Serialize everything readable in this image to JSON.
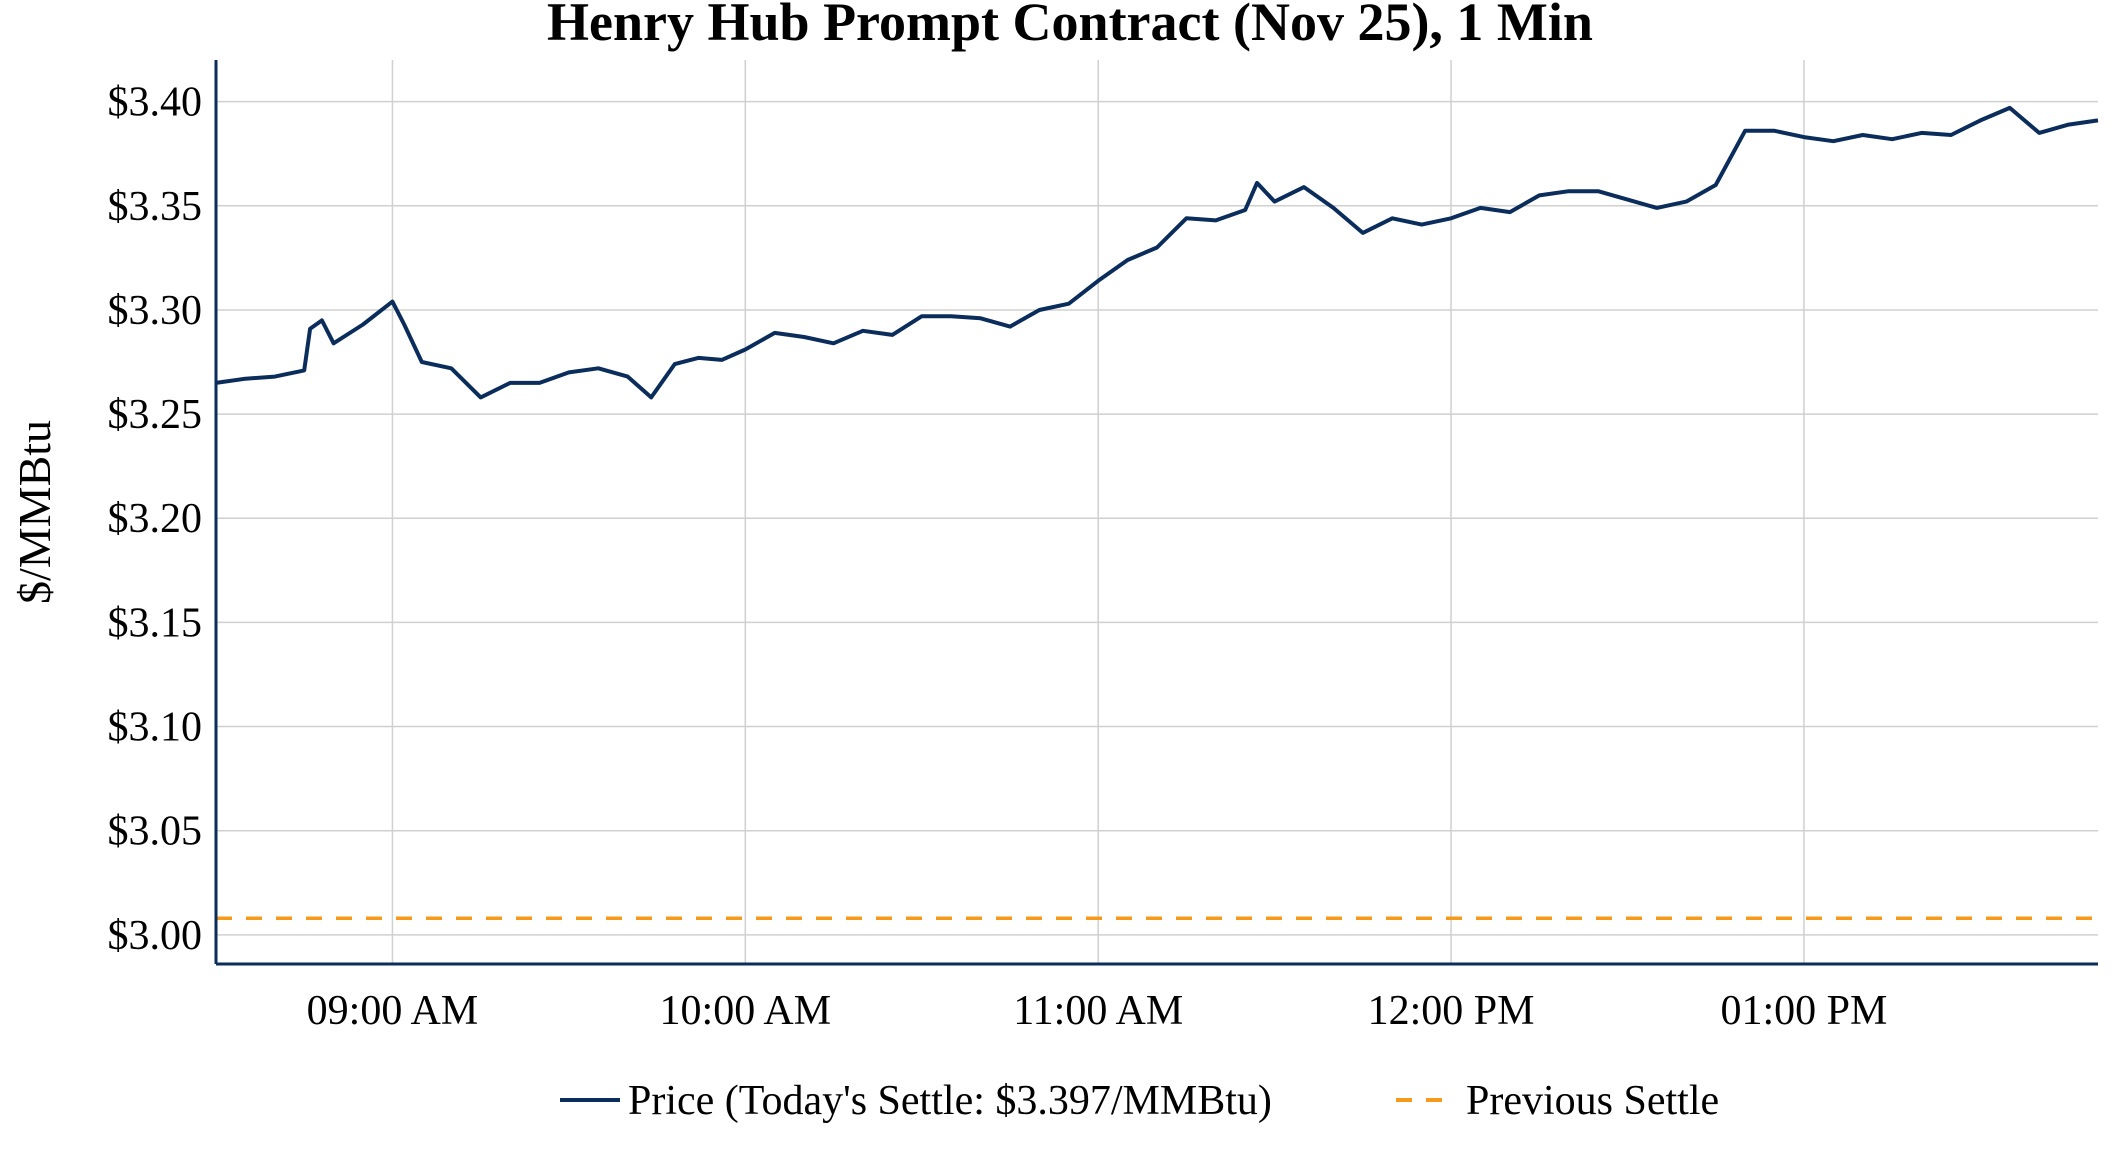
{
  "chart_data": {
    "type": "line",
    "title": "Henry Hub Prompt Contract (Nov 25), 1 Min",
    "ylabel": "$/MMBtu",
    "xlabel": "",
    "x_start": "08:30 AM",
    "x_end": "01:50 PM",
    "x_ticks": [
      "09:00 AM",
      "10:00 AM",
      "11:00 AM",
      "12:00 PM",
      "01:00 PM"
    ],
    "y_ticks": [
      "$3.00",
      "$3.05",
      "$3.10",
      "$3.15",
      "$3.20",
      "$3.25",
      "$3.30",
      "$3.35",
      "$3.40"
    ],
    "ylim": [
      2.986,
      3.42
    ],
    "grid": true,
    "legend_position": "bottom-center",
    "series": [
      {
        "name": "Price (Today's Settle: $3.397/MMBtu)",
        "color": "#0a2d5c",
        "style": "solid",
        "points": [
          [
            "08:30 AM",
            3.265
          ],
          [
            "08:35 AM",
            3.267
          ],
          [
            "08:40 AM",
            3.268
          ],
          [
            "08:45 AM",
            3.271
          ],
          [
            "08:46 AM",
            3.291
          ],
          [
            "08:48 AM",
            3.295
          ],
          [
            "08:50 AM",
            3.284
          ],
          [
            "08:55 AM",
            3.293
          ],
          [
            "09:00 AM",
            3.304
          ],
          [
            "09:02 AM",
            3.293
          ],
          [
            "09:05 AM",
            3.275
          ],
          [
            "09:10 AM",
            3.272
          ],
          [
            "09:15 AM",
            3.258
          ],
          [
            "09:20 AM",
            3.265
          ],
          [
            "09:25 AM",
            3.265
          ],
          [
            "09:30 AM",
            3.27
          ],
          [
            "09:35 AM",
            3.272
          ],
          [
            "09:40 AM",
            3.268
          ],
          [
            "09:44 AM",
            3.258
          ],
          [
            "09:48 AM",
            3.274
          ],
          [
            "09:52 AM",
            3.277
          ],
          [
            "09:56 AM",
            3.276
          ],
          [
            "10:00 AM",
            3.281
          ],
          [
            "10:05 AM",
            3.289
          ],
          [
            "10:10 AM",
            3.287
          ],
          [
            "10:15 AM",
            3.284
          ],
          [
            "10:20 AM",
            3.29
          ],
          [
            "10:25 AM",
            3.288
          ],
          [
            "10:30 AM",
            3.297
          ],
          [
            "10:35 AM",
            3.297
          ],
          [
            "10:40 AM",
            3.296
          ],
          [
            "10:45 AM",
            3.292
          ],
          [
            "10:50 AM",
            3.3
          ],
          [
            "10:55 AM",
            3.303
          ],
          [
            "11:00 AM",
            3.314
          ],
          [
            "11:05 AM",
            3.324
          ],
          [
            "11:10 AM",
            3.33
          ],
          [
            "11:15 AM",
            3.344
          ],
          [
            "11:20 AM",
            3.343
          ],
          [
            "11:25 AM",
            3.348
          ],
          [
            "11:27 AM",
            3.361
          ],
          [
            "11:30 AM",
            3.352
          ],
          [
            "11:35 AM",
            3.359
          ],
          [
            "11:40 AM",
            3.349
          ],
          [
            "11:45 AM",
            3.337
          ],
          [
            "11:50 AM",
            3.344
          ],
          [
            "11:55 AM",
            3.341
          ],
          [
            "12:00 PM",
            3.344
          ],
          [
            "12:05 PM",
            3.349
          ],
          [
            "12:10 PM",
            3.347
          ],
          [
            "12:15 PM",
            3.355
          ],
          [
            "12:20 PM",
            3.357
          ],
          [
            "12:25 PM",
            3.357
          ],
          [
            "12:30 PM",
            3.353
          ],
          [
            "12:35 PM",
            3.349
          ],
          [
            "12:40 PM",
            3.352
          ],
          [
            "12:45 PM",
            3.36
          ],
          [
            "12:50 PM",
            3.386
          ],
          [
            "12:55 PM",
            3.386
          ],
          [
            "01:00 PM",
            3.383
          ],
          [
            "01:05 PM",
            3.381
          ],
          [
            "01:10 PM",
            3.384
          ],
          [
            "01:15 PM",
            3.382
          ],
          [
            "01:20 PM",
            3.385
          ],
          [
            "01:25 PM",
            3.384
          ],
          [
            "01:30 PM",
            3.391
          ],
          [
            "01:35 PM",
            3.397
          ],
          [
            "01:40 PM",
            3.385
          ],
          [
            "01:45 PM",
            3.389
          ],
          [
            "01:50 PM",
            3.391
          ]
        ]
      },
      {
        "name": "Previous Settle",
        "color": "#f59a1b",
        "style": "dashed",
        "points": [
          [
            "08:30 AM",
            3.008
          ],
          [
            "01:50 PM",
            3.008
          ]
        ]
      }
    ]
  }
}
